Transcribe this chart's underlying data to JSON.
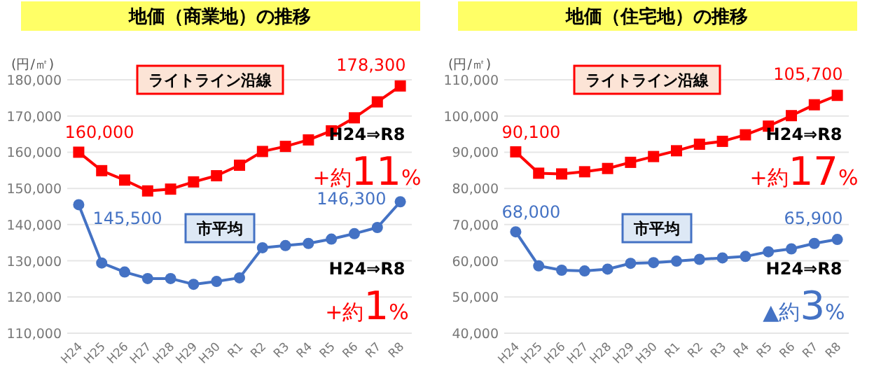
{
  "chart_data": [
    {
      "type": "line",
      "title": "地価（商業地）の推移",
      "ylabel": "(円/㎡)",
      "categories": [
        "H24",
        "H25",
        "H26",
        "H27",
        "H28",
        "H29",
        "H30",
        "R1",
        "R2",
        "R3",
        "R4",
        "R5",
        "R6",
        "R7",
        "R8"
      ],
      "ylim": [
        110000,
        180000
      ],
      "yticks": [
        {
          "value": 110000,
          "label": "110,000"
        },
        {
          "value": 120000,
          "label": "120,000"
        },
        {
          "value": 130000,
          "label": "130,000"
        },
        {
          "value": 140000,
          "label": "140,000"
        },
        {
          "value": 150000,
          "label": "150,000"
        },
        {
          "value": 160000,
          "label": "160,000"
        },
        {
          "value": 170000,
          "label": "170,000"
        },
        {
          "value": 180000,
          "label": "180,000"
        }
      ],
      "grid": "y",
      "legend": false,
      "series": [
        {
          "name": "ライトライン沿線",
          "color": "#ff0000",
          "marker": "square",
          "values": [
            160000,
            154900,
            152300,
            149300,
            149800,
            151800,
            153500,
            156400,
            160200,
            161600,
            163400,
            165900,
            169500,
            173900,
            178300
          ],
          "value_labels": [
            "160,000",
            null,
            null,
            null,
            null,
            null,
            null,
            null,
            null,
            null,
            null,
            null,
            null,
            null,
            "178,300"
          ]
        },
        {
          "name": "市平均",
          "color": "#4472c4",
          "marker": "circle",
          "values": [
            145500,
            129400,
            126900,
            125100,
            125100,
            123500,
            124300,
            125300,
            133600,
            134200,
            134800,
            136000,
            137500,
            139200,
            146300
          ],
          "value_labels": [
            "145,500",
            null,
            null,
            null,
            null,
            null,
            null,
            null,
            null,
            null,
            null,
            null,
            null,
            null,
            "146,300"
          ]
        }
      ],
      "annotations": [
        "H24⇒R8",
        "+約11%",
        "H24⇒R8",
        "+約1%"
      ]
    },
    {
      "type": "line",
      "title": "地価（住宅地）の推移",
      "ylabel": "(円/㎡)",
      "categories": [
        "H24",
        "H25",
        "H26",
        "H27",
        "H28",
        "H29",
        "H30",
        "R1",
        "R2",
        "R3",
        "R4",
        "R5",
        "R6",
        "R7",
        "R8"
      ],
      "ylim": [
        40000,
        110000
      ],
      "yticks": [
        {
          "value": 40000,
          "label": "40,000"
        },
        {
          "value": 50000,
          "label": "50,000"
        },
        {
          "value": 60000,
          "label": "60,000"
        },
        {
          "value": 70000,
          "label": "70,000"
        },
        {
          "value": 80000,
          "label": "80,000"
        },
        {
          "value": 90000,
          "label": "90,000"
        },
        {
          "value": 100000,
          "label": "100,000"
        },
        {
          "value": 110000,
          "label": "110,000"
        }
      ],
      "grid": "y",
      "legend": false,
      "series": [
        {
          "name": "ライトライン沿線",
          "color": "#ff0000",
          "marker": "square",
          "values": [
            90100,
            84200,
            84000,
            84600,
            85500,
            87200,
            88800,
            90400,
            92200,
            93000,
            94800,
            97200,
            100100,
            103100,
            105700
          ],
          "value_labels": [
            "90,100",
            null,
            null,
            null,
            null,
            null,
            null,
            null,
            null,
            null,
            null,
            null,
            null,
            null,
            "105,700"
          ]
        },
        {
          "name": "市平均",
          "color": "#4472c4",
          "marker": "circle",
          "values": [
            68000,
            58600,
            57400,
            57200,
            57700,
            59300,
            59500,
            59900,
            60400,
            60800,
            61200,
            62500,
            63300,
            64800,
            65900
          ],
          "value_labels": [
            "68,000",
            null,
            null,
            null,
            null,
            null,
            null,
            null,
            null,
            null,
            null,
            null,
            null,
            null,
            "65,900"
          ]
        }
      ],
      "annotations": [
        "H24⇒R8",
        "+約17%",
        "H24⇒R8",
        "▲約3%"
      ]
    }
  ]
}
